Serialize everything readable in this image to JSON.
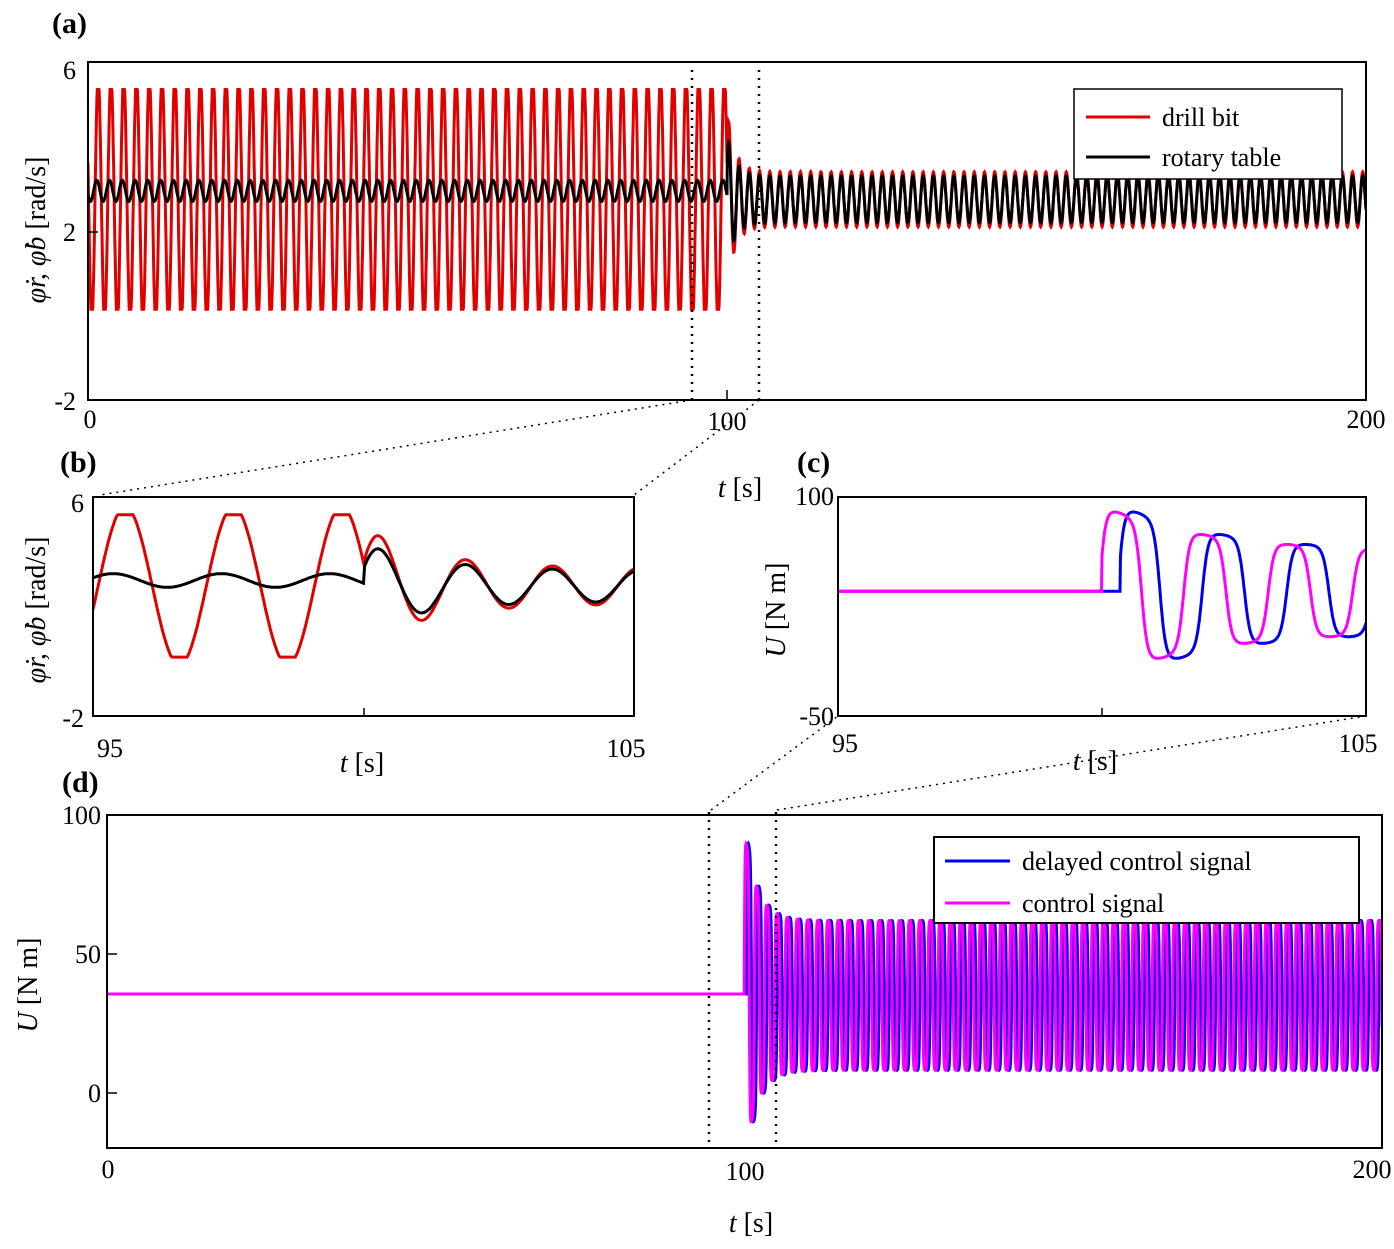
{
  "chart_data": [
    {
      "id": "a",
      "panel_label": "(a)",
      "type": "line",
      "xlabel_var": "t",
      "xlabel_unit": "[s]",
      "ylabel_var": "φ̇r, φ̇b",
      "ylabel_unit": "[rad/s]",
      "xlim": [
        0,
        200
      ],
      "ylim": [
        -2,
        6
      ],
      "xticks": [
        "0",
        "100",
        "200"
      ],
      "yticks": [
        "-2",
        "2",
        "6"
      ],
      "legend": {
        "position": "top-right",
        "entries": [
          "drill bit",
          "rotary table"
        ]
      },
      "series": [
        {
          "name": "drill bit",
          "color": "#e00000",
          "description_values": {
            "before_100s": {
              "mean": 2.75,
              "amplitude": 2.6,
              "period_s": 2.0
            },
            "after_100s": {
              "mean": 2.75,
              "amplitude": 0.65,
              "period_s": 1.6
            }
          }
        },
        {
          "name": "rotary table",
          "color": "#000000",
          "description_values": {
            "before_100s": {
              "mean": 2.95,
              "amplitude": 0.25,
              "period_s": 2.0
            },
            "after_100s": {
              "mean": 2.75,
              "amplitude": 0.55,
              "period_s": 1.6
            }
          }
        }
      ],
      "zoom_window": [
        95,
        105
      ]
    },
    {
      "id": "b",
      "panel_label": "(b)",
      "type": "line",
      "xlabel_var": "t",
      "xlabel_unit": "[s]",
      "ylabel_var": "φ̇r, φ̇b",
      "ylabel_unit": "[rad/s]",
      "xlim": [
        95,
        105
      ],
      "ylim": [
        -2,
        6
      ],
      "xticks": [
        "95",
        "105"
      ],
      "yticks": [
        "-2",
        "6"
      ],
      "series": [
        {
          "name": "drill bit",
          "color": "#e00000"
        },
        {
          "name": "rotary table",
          "color": "#000000"
        }
      ]
    },
    {
      "id": "c",
      "panel_label": "(c)",
      "type": "line",
      "xlabel_var": "t",
      "xlabel_unit": "[s]",
      "ylabel_var": "U",
      "ylabel_unit": "[N m]",
      "xlim": [
        95,
        105
      ],
      "ylim": [
        -50,
        100
      ],
      "xticks": [
        "95",
        "105"
      ],
      "yticks": [
        "-50",
        "100"
      ],
      "series": [
        {
          "name": "delayed control signal",
          "color": "#0000ee"
        },
        {
          "name": "control signal",
          "color": "#ff00ff"
        }
      ]
    },
    {
      "id": "d",
      "panel_label": "(d)",
      "type": "line",
      "xlabel_var": "t",
      "xlabel_unit": "[s]",
      "ylabel_var": "U",
      "ylabel_unit": "[N m]",
      "xlim": [
        0,
        200
      ],
      "ylim": [
        -20,
        100
      ],
      "xticks": [
        "0",
        "100",
        "200"
      ],
      "yticks": [
        "0",
        "50",
        "100"
      ],
      "legend": {
        "position": "top-right",
        "entries": [
          "delayed control signal",
          "control signal"
        ]
      },
      "series": [
        {
          "name": "delayed control signal",
          "color": "#0000ee",
          "description_values": {
            "before_100s": 35.5,
            "after_105s": {
              "min": 8,
              "max": 62
            },
            "peak": 94,
            "trough": -13
          }
        },
        {
          "name": "control signal",
          "color": "#ff00ff",
          "description_values": {
            "before_100s": 35.5,
            "after_105s": {
              "min": 8,
              "max": 62
            },
            "peak": 94,
            "trough": -12
          }
        }
      ],
      "zoom_window": [
        95,
        105
      ]
    }
  ]
}
